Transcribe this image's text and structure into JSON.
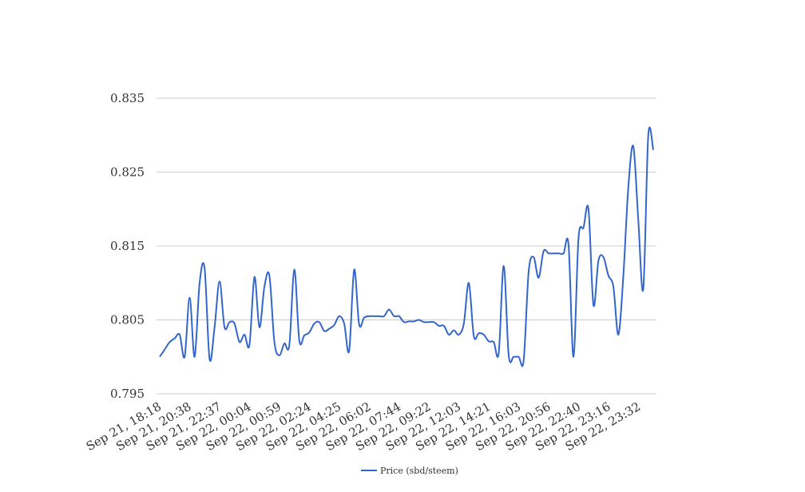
{
  "chart_data": {
    "type": "line",
    "title": "",
    "xlabel": "",
    "ylabel": "",
    "ylim": [
      0.795,
      0.835
    ],
    "y_ticks": [
      "0.795",
      "0.805",
      "0.815",
      "0.825",
      "0.835"
    ],
    "x_tick_labels": [
      "Sep 21, 18:18",
      "Sep 21, 20:38",
      "Sep 21, 22:37",
      "Sep 22, 00:04",
      "Sep 22, 00:59",
      "Sep 22, 02:24",
      "Sep 22, 04:25",
      "Sep 22, 06:02",
      "Sep 22, 07:44",
      "Sep 22, 09:22",
      "Sep 22, 12:03",
      "Sep 22, 14:21",
      "Sep 22, 16:03",
      "Sep 22, 20:56",
      "Sep 22, 22:40",
      "Sep 22, 23:16",
      "Sep 22, 23:32"
    ],
    "grid": "horizontal",
    "legend_position": "bottom",
    "series": [
      {
        "name": "Price (sbd/steem)",
        "color": "#3366cc",
        "values": [
          0.8,
          0.801,
          0.802,
          0.8025,
          0.803,
          0.8,
          0.808,
          0.8,
          0.81,
          0.812,
          0.7997,
          0.804,
          0.8102,
          0.804,
          0.8047,
          0.8045,
          0.802,
          0.803,
          0.8016,
          0.8108,
          0.804,
          0.8095,
          0.811,
          0.802,
          0.8002,
          0.8018,
          0.8016,
          0.8118,
          0.8022,
          0.8029,
          0.8033,
          0.8045,
          0.8047,
          0.8035,
          0.8038,
          0.8043,
          0.8055,
          0.8045,
          0.8008,
          0.8118,
          0.8044,
          0.8053,
          0.8055,
          0.8055,
          0.8055,
          0.8055,
          0.8064,
          0.8055,
          0.8055,
          0.8047,
          0.8048,
          0.8048,
          0.805,
          0.8047,
          0.8047,
          0.8047,
          0.8042,
          0.8042,
          0.803,
          0.8036,
          0.803,
          0.8045,
          0.81,
          0.8028,
          0.8032,
          0.803,
          0.8021,
          0.802,
          0.8005,
          0.8123,
          0.8002,
          0.8,
          0.8,
          0.7995,
          0.8115,
          0.8135,
          0.8107,
          0.8143,
          0.814,
          0.814,
          0.814,
          0.814,
          0.8152,
          0.8,
          0.816,
          0.8175,
          0.82,
          0.807,
          0.813,
          0.8135,
          0.811,
          0.8095,
          0.803,
          0.811,
          0.823,
          0.8285,
          0.8185,
          0.8092,
          0.83,
          0.828
        ]
      }
    ]
  }
}
